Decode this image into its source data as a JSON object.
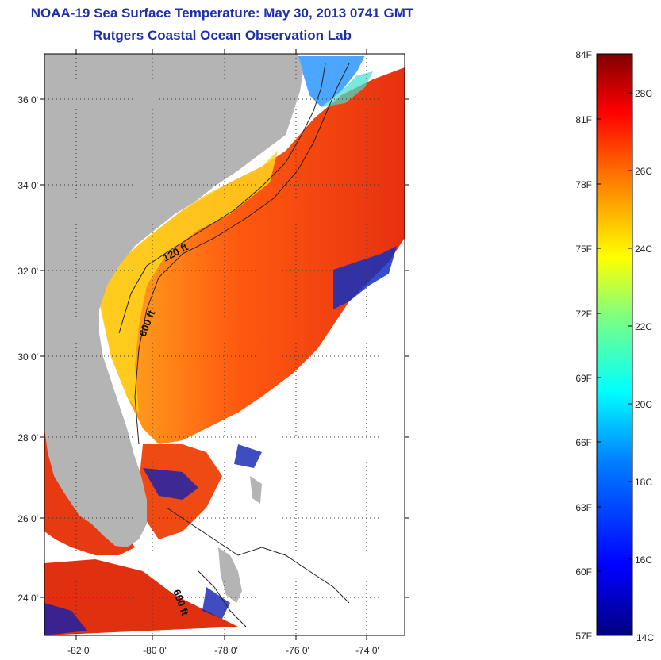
{
  "header": {
    "title": "NOAA-19 Sea Surface Temperature:  May 30, 2013 0741 GMT",
    "subtitle": "Rutgers Coastal Ocean Observation Lab"
  },
  "map": {
    "lat_ticks": [
      "36 0'",
      "34 0'",
      "32 0'",
      "30 0'",
      "28 0'",
      "26 0'",
      "24 0'"
    ],
    "lon_ticks": [
      "-82 0'",
      "-80 0'",
      "-78 0'",
      "-76 0'",
      "-74 0'"
    ],
    "contour_labels": [
      "120 ft",
      "600 ft",
      "600 ft"
    ],
    "colors": {
      "land": "#b4b4b4",
      "no_data": "#ffffff",
      "gridline": "#333333"
    }
  },
  "colorbar": {
    "f_labels": [
      "84F",
      "81F",
      "78F",
      "75F",
      "72F",
      "69F",
      "66F",
      "63F",
      "60F",
      "57F"
    ],
    "c_labels": [
      "28C",
      "26C",
      "24C",
      "22C",
      "20C",
      "18C",
      "16C",
      "14C"
    ],
    "colors": [
      "#000080",
      "#0000ff",
      "#0080ff",
      "#00ffff",
      "#80ff80",
      "#ffff00",
      "#ff8000",
      "#ff0000",
      "#800000"
    ]
  }
}
